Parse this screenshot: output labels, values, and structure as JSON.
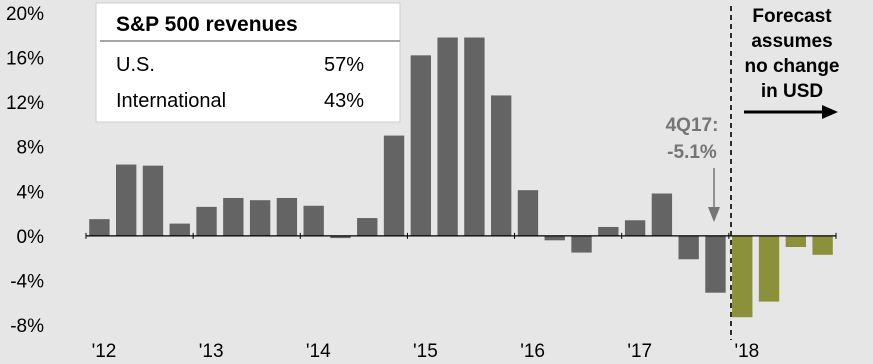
{
  "chart_data": {
    "type": "bar",
    "ylim": [
      -8,
      20
    ],
    "yticks": [
      "20%",
      "16%",
      "12%",
      "8%",
      "4%",
      "0%",
      "-4%",
      "-8%"
    ],
    "ytick_values": [
      20,
      16,
      12,
      8,
      4,
      0,
      -4,
      -8
    ],
    "xtick_labels": [
      "'12",
      "'13",
      "'14",
      "'15",
      "'16",
      "'17",
      "'18"
    ],
    "categories": [
      "1Q12",
      "2Q12",
      "3Q12",
      "4Q12",
      "1Q13",
      "2Q13",
      "3Q13",
      "4Q13",
      "1Q14",
      "2Q14",
      "3Q14",
      "4Q14",
      "1Q15",
      "2Q15",
      "3Q15",
      "4Q15",
      "1Q16",
      "2Q16",
      "3Q16",
      "4Q16",
      "1Q17",
      "2Q17",
      "3Q17",
      "4Q17",
      "1Q18",
      "2Q18",
      "3Q18",
      "4Q18"
    ],
    "values": [
      1.5,
      6.4,
      6.3,
      1.1,
      2.6,
      3.4,
      3.2,
      3.4,
      2.7,
      -0.2,
      1.6,
      9.0,
      16.2,
      17.8,
      17.8,
      12.6,
      4.1,
      -0.4,
      -1.5,
      0.8,
      1.4,
      3.8,
      -2.1,
      -5.1,
      -7.3,
      -5.9,
      -1.0,
      -1.7
    ],
    "forecast": [
      false,
      false,
      false,
      false,
      false,
      false,
      false,
      false,
      false,
      false,
      false,
      false,
      false,
      false,
      false,
      false,
      false,
      false,
      false,
      false,
      false,
      false,
      false,
      false,
      true,
      true,
      true,
      true
    ],
    "colors": {
      "actual": "#646464",
      "forecast": "#8b903a",
      "background": "#e6e6e6",
      "box": "#ffffff"
    },
    "inset": {
      "title": "S&P 500 revenues",
      "rows": [
        {
          "label": "U.S.",
          "value": "57%"
        },
        {
          "label": "International",
          "value": "43%"
        }
      ]
    },
    "callout": {
      "line1": "4Q17:",
      "line2": "-5.1%"
    },
    "forecast_note": [
      "Forecast",
      "assumes",
      "no change",
      "in USD"
    ]
  }
}
